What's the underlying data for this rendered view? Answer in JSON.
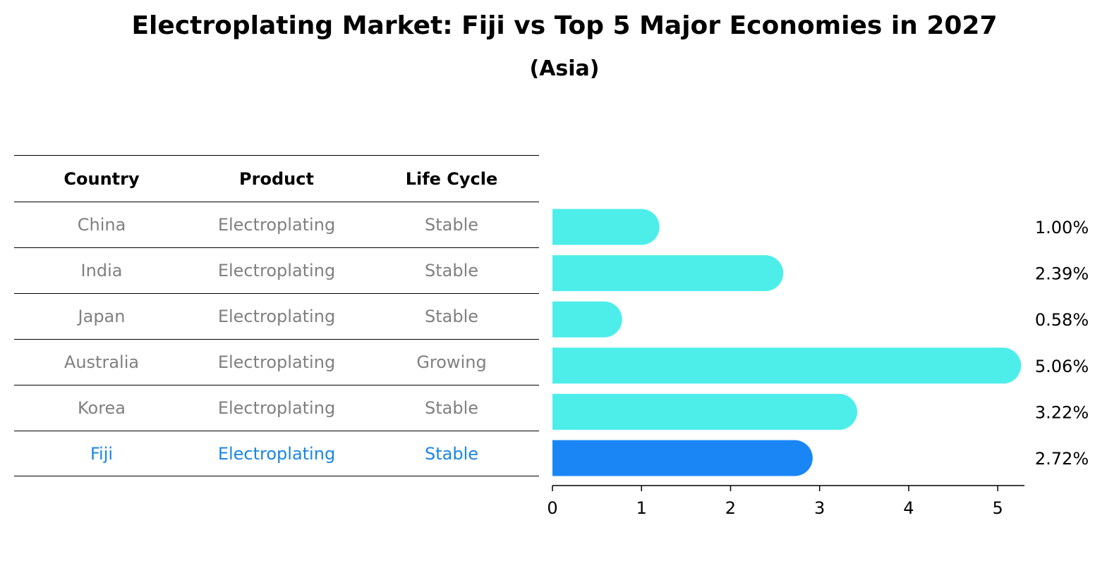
{
  "title": "Electroplating Market: Fiji vs Top 5 Major Economies in 2027",
  "subtitle": "(Asia)",
  "table": {
    "headers": [
      "Country",
      "Product",
      "Life Cycle"
    ],
    "rows": [
      [
        "China",
        "Electroplating",
        "Stable"
      ],
      [
        "India",
        "Electroplating",
        "Stable"
      ],
      [
        "Japan",
        "Electroplating",
        "Stable"
      ],
      [
        "Australia",
        "Electroplating",
        "Growing"
      ],
      [
        "Korea",
        "Electroplating",
        "Stable"
      ],
      [
        "Fiji",
        "Electroplating",
        "Stable"
      ]
    ]
  },
  "colors": {
    "bar": "#4deeea",
    "highlight": "#1a86f5",
    "highlight_text": "#1a86e6",
    "muted_text": "#808080"
  },
  "chart_data": {
    "type": "bar",
    "orientation": "horizontal",
    "categories": [
      "China",
      "India",
      "Japan",
      "Australia",
      "Korea",
      "Fiji"
    ],
    "values": [
      1.0,
      2.39,
      0.58,
      5.06,
      3.22,
      2.72
    ],
    "value_labels": [
      "1.00%",
      "2.39%",
      "0.58%",
      "5.06%",
      "3.22%",
      "2.72%"
    ],
    "highlight": "Fiji",
    "xlim": [
      0,
      5.3
    ],
    "xticks": [
      0,
      1,
      2,
      3,
      4,
      5
    ],
    "xtick_labels": [
      "0",
      "1",
      "2",
      "3",
      "4",
      "5"
    ]
  }
}
